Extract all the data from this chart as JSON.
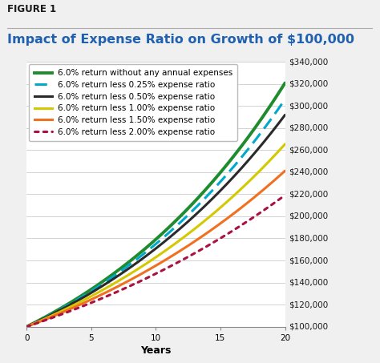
{
  "figure_label": "FIGURE 1",
  "title": "Impact of Expense Ratio on Growth of $100,000",
  "principal": 100000,
  "years": 20,
  "series": [
    {
      "label": "6.0% return without any annual expenses",
      "rate": 0.06,
      "color": "#1e8b2e",
      "linestyle": "solid",
      "linewidth": 2.8
    },
    {
      "label": "6.0% return less 0.25% expense ratio",
      "rate": 0.0575,
      "color": "#00a8cc",
      "linestyle": "dashed",
      "linewidth": 2.2
    },
    {
      "label": "6.0% return less 0.50% expense ratio",
      "rate": 0.055,
      "color": "#2a2a2a",
      "linestyle": "solid",
      "linewidth": 2.2
    },
    {
      "label": "6.0% return less 1.00% expense ratio",
      "rate": 0.05,
      "color": "#d4c800",
      "linestyle": "solid",
      "linewidth": 2.2
    },
    {
      "label": "6.0% return less 1.50% expense ratio",
      "rate": 0.045,
      "color": "#f07020",
      "linestyle": "solid",
      "linewidth": 2.2
    },
    {
      "label": "6.0% return less 2.00% expense ratio",
      "rate": 0.04,
      "color": "#aa1040",
      "linestyle": "dotted",
      "linewidth": 2.2
    }
  ],
  "xlim": [
    0,
    20
  ],
  "ylim": [
    100000,
    340000
  ],
  "yticks": [
    100000,
    120000,
    140000,
    160000,
    180000,
    200000,
    220000,
    240000,
    260000,
    280000,
    300000,
    320000,
    340000
  ],
  "xticks": [
    0,
    5,
    10,
    15,
    20
  ],
  "xlabel": "Years",
  "background_color": "#f0f0f0",
  "plot_bg_color": "#ffffff",
  "title_color": "#2060b0",
  "figure_label_color": "#1a1a1a",
  "title_fontsize": 11.5,
  "label_fontsize": 7.5,
  "tick_fontsize": 7.5,
  "figsize": [
    4.74,
    4.53
  ],
  "dpi": 100
}
